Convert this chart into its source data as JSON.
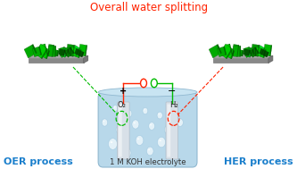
{
  "title": "Overall water splitting",
  "title_color": "#ff2200",
  "title_fontsize": 8.5,
  "oer_label": "OER process",
  "her_label": "HER process",
  "electrolyte_label": "1 M KOH electrolyte",
  "o2_label": "O₂",
  "h2_label": "H₂",
  "label_color": "#1a7fcc",
  "label_fontsize": 8.0,
  "bg_color": "#ffffff",
  "beaker_fill": "#b8d8ea",
  "beaker_edge": "#90b8d0",
  "bubble_face": "#e8f4fa",
  "bubble_edge": "#a0c8e0",
  "wire_red": "#ff2200",
  "wire_green": "#00bb00",
  "elec_face": "#d8e0e8",
  "elec_edge": "#b0bcc8"
}
